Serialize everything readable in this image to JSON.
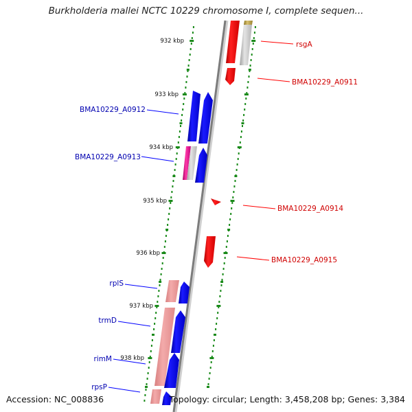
{
  "title": "Burkholderia mallei NCTC 10229 chromosome I, complete sequen...",
  "accession": "Accession: NC_008836",
  "topology": "Topology: circular; Length: 3,458,208 bp; Genes: 3,384",
  "scale_labels": [
    "932 kbp",
    "933 kbp",
    "934 kbp",
    "935 kbp",
    "936 kbp",
    "937 kbp",
    "938 kbp"
  ],
  "gene_labels": [
    "rsgA",
    "BMA10229_A0911",
    "BMA10229_A0912",
    "BMA10229_A0913",
    "BMA10229_A0914",
    "BMA10229_A0915",
    "rplS",
    "trmD",
    "rimM",
    "rpsP"
  ],
  "colors": {
    "forward": "#ff0000",
    "reverse": "#0000ff",
    "backbone": "#8c8c8c",
    "scale_tick": "#1a8a1a",
    "rna": "#e6007e",
    "pseudo": "#c8c8c8",
    "pale_red": "#e88888",
    "olive": "#b09a3a"
  }
}
